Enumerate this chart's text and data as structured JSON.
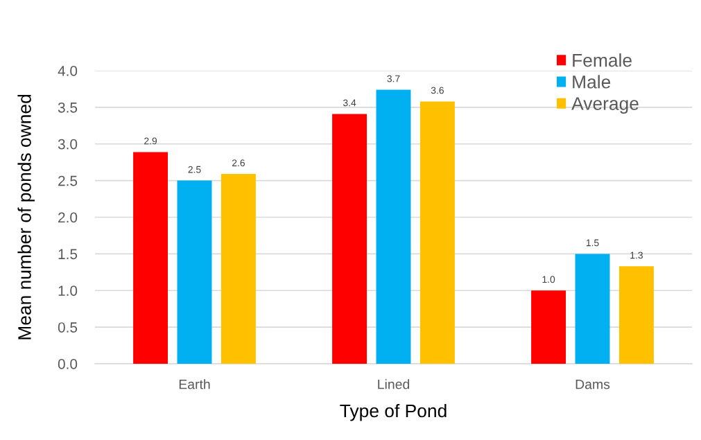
{
  "chart_data": {
    "type": "bar",
    "xlabel": "Type of Pond",
    "ylabel": "Mean number of ponds owned",
    "categories": [
      "Earth",
      "Lined",
      "Dams"
    ],
    "series": [
      {
        "name": "Female",
        "color": "#ff0000",
        "values": [
          2.89,
          3.41,
          1.0
        ],
        "value_labels": [
          "2.9",
          "3.4",
          "1.0"
        ]
      },
      {
        "name": "Male",
        "color": "#00b0f0",
        "values": [
          2.5,
          3.74,
          1.5
        ],
        "value_labels": [
          "2.5",
          "3.7",
          "1.5"
        ]
      },
      {
        "name": "Average",
        "color": "#ffc000",
        "values": [
          2.59,
          3.58,
          1.33
        ],
        "value_labels": [
          "2.6",
          "3.6",
          "1.3"
        ]
      }
    ],
    "ylim": [
      0,
      4
    ],
    "yticks": [
      {
        "value": 0,
        "label": "0.0"
      },
      {
        "value": 0.5,
        "label": "0.5"
      },
      {
        "value": 1,
        "label": "1.0"
      },
      {
        "value": 1.5,
        "label": "1.5"
      },
      {
        "value": 2,
        "label": "2.0"
      },
      {
        "value": 2.5,
        "label": "2.5"
      },
      {
        "value": 3,
        "label": "3.0"
      },
      {
        "value": 3.5,
        "label": "3.5"
      },
      {
        "value": 4,
        "label": "4.0"
      }
    ],
    "grid": "y",
    "legend": "top right"
  }
}
